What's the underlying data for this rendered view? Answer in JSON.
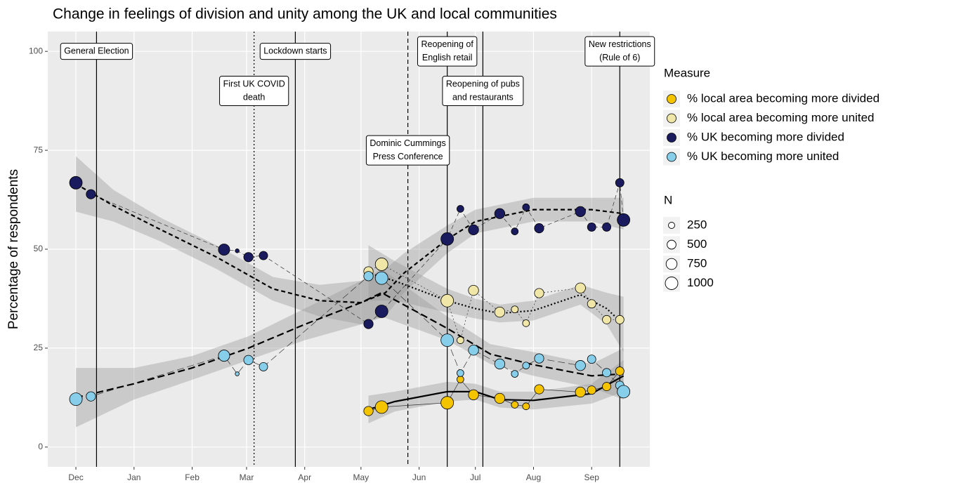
{
  "chart_data": {
    "type": "scatter",
    "title": "Change in feelings of division and unity among the UK and local communities",
    "ylabel": "Percentage of respondents",
    "xlim": [
      -15,
      306
    ],
    "ylim": [
      -5,
      105
    ],
    "xticks": [
      {
        "value": 0,
        "label": "Dec"
      },
      {
        "value": 31,
        "label": "Jan"
      },
      {
        "value": 62,
        "label": "Feb"
      },
      {
        "value": 91,
        "label": "Mar"
      },
      {
        "value": 122,
        "label": "Apr"
      },
      {
        "value": 152,
        "label": "May"
      },
      {
        "value": 183,
        "label": "Jun"
      },
      {
        "value": 213,
        "label": "Jul"
      },
      {
        "value": 244,
        "label": "Aug"
      },
      {
        "value": 275,
        "label": "Sep"
      }
    ],
    "yticks": [
      0,
      25,
      50,
      75,
      100
    ],
    "grid": true,
    "legend_title": "Measure",
    "size_legend": {
      "title": "N",
      "values": [
        250,
        500,
        750,
        1000
      ]
    },
    "annotations": [
      {
        "label": [
          "General Election"
        ],
        "x": 11,
        "label_y": 100,
        "linetype": "solid"
      },
      {
        "label": [
          "First UK COVID",
          "death"
        ],
        "x": 95,
        "label_y": 90,
        "linetype": "dotted"
      },
      {
        "label": [
          "Lockdown starts"
        ],
        "x": 117,
        "label_y": 100,
        "linetype": "solid"
      },
      {
        "label": [
          "Dominic Cummings",
          "Press Conference"
        ],
        "x": 177,
        "label_y": 75,
        "linetype": "dashed"
      },
      {
        "label": [
          "Reopening of",
          "English retail"
        ],
        "x": 198,
        "label_y": 100,
        "linetype": "solid"
      },
      {
        "label": [
          "Reopening of pubs",
          "and restaurants"
        ],
        "x": 217,
        "label_y": 90,
        "linetype": "solid"
      },
      {
        "label": [
          "New restrictions",
          "(Rule of 6)"
        ],
        "x": 290,
        "label_y": 100,
        "linetype": "solid"
      }
    ],
    "series": [
      {
        "name": "% local area becoming more divided",
        "color": "#f5c400",
        "linetype": "solid",
        "x": [
          156,
          163,
          198,
          205,
          212,
          226,
          234,
          240,
          247,
          269,
          275,
          283,
          290
        ],
        "values": [
          9.1,
          10.1,
          11.2,
          17.1,
          13.2,
          12.3,
          10.7,
          10.3,
          14.6,
          13.9,
          14.4,
          15.3,
          19.2
        ],
        "sizes": [
          550,
          1000,
          1000,
          300,
          650,
          650,
          300,
          300,
          550,
          650,
          450,
          450,
          450
        ],
        "trend": {
          "x": [
            156,
            170,
            198,
            213,
            226,
            244,
            275,
            292
          ],
          "values": [
            9.5,
            11.5,
            14,
            14,
            12,
            11.8,
            13.5,
            18
          ],
          "lower": [
            6,
            9,
            11.5,
            12,
            10,
            9.5,
            11,
            14
          ],
          "upper": [
            13,
            14,
            16.5,
            16,
            14,
            14,
            16,
            22
          ]
        }
      },
      {
        "name": "% local area becoming more united",
        "color": "#f0e6a8",
        "linetype": "dotted",
        "x": [
          156,
          163,
          198,
          205,
          212,
          226,
          234,
          240,
          247,
          269,
          275,
          283,
          290
        ],
        "values": [
          44.4,
          46.2,
          37,
          27,
          39.6,
          34.1,
          34.8,
          31.3,
          38.9,
          40.2,
          36.2,
          32.2,
          32.2
        ],
        "sizes": [
          550,
          1000,
          1000,
          300,
          650,
          650,
          300,
          300,
          550,
          650,
          450,
          450,
          450
        ],
        "trend": {
          "x": [
            156,
            170,
            198,
            213,
            226,
            244,
            269,
            283,
            292
          ],
          "values": [
            44,
            42,
            37,
            35,
            33.8,
            34.5,
            38.5,
            35,
            31
          ],
          "lower": [
            37,
            37,
            34,
            32.5,
            31.5,
            32,
            36,
            31,
            24
          ],
          "upper": [
            51,
            47,
            40,
            37.5,
            36,
            37,
            41,
            39,
            38
          ]
        }
      },
      {
        "name": "% UK becoming more divided",
        "color": "#1a1a5e",
        "linetype": "dashed",
        "x": [
          0,
          8,
          79,
          86,
          92,
          100,
          156,
          163,
          198,
          205,
          212,
          226,
          234,
          240,
          247,
          269,
          275,
          283,
          290,
          292
        ],
        "values": [
          66.8,
          63.9,
          49.9,
          49.6,
          48,
          48.4,
          31.1,
          34.3,
          52.6,
          60.2,
          54.9,
          59,
          54.5,
          60.6,
          55.3,
          59.5,
          55.6,
          55.6,
          66.8,
          57.4
        ],
        "sizes": [
          1000,
          550,
          800,
          100,
          550,
          450,
          550,
          1000,
          1000,
          300,
          650,
          650,
          300,
          300,
          550,
          650,
          450,
          450,
          450,
          1000
        ],
        "trend": {
          "x": [
            0,
            20,
            45,
            75,
            105,
            130,
            152,
            165,
            175,
            198,
            213,
            244,
            275,
            292
          ],
          "values": [
            66.5,
            61,
            55,
            48,
            40,
            37,
            36.5,
            39,
            44,
            52.5,
            57,
            60,
            60,
            59
          ],
          "lower": [
            59.5,
            57,
            52,
            45,
            37,
            33,
            31,
            33,
            39,
            49,
            54,
            57,
            57,
            55
          ],
          "upper": [
            73.5,
            65,
            58,
            51,
            43,
            41,
            42,
            45,
            49,
            56,
            60,
            63,
            63,
            63
          ]
        }
      },
      {
        "name": "% UK becoming more united",
        "color": "#87ceeb",
        "linetype": "longdash",
        "x": [
          0,
          8,
          79,
          86,
          92,
          100,
          156,
          163,
          198,
          205,
          212,
          226,
          234,
          240,
          247,
          269,
          275,
          283,
          290,
          292
        ],
        "values": [
          12.1,
          12.8,
          23.1,
          18.5,
          22,
          20.3,
          43.2,
          42.7,
          27,
          18.7,
          24.5,
          21,
          18.5,
          20.6,
          22.4,
          20.6,
          22.2,
          18.8,
          15.6,
          14
        ],
        "sizes": [
          1000,
          550,
          800,
          100,
          550,
          450,
          550,
          1000,
          1000,
          300,
          650,
          650,
          300,
          300,
          550,
          650,
          450,
          450,
          450,
          1000
        ],
        "trend": {
          "x": [
            0,
            31,
            62,
            92,
            122,
            152,
            163,
            198,
            221,
            244,
            275,
            292
          ],
          "values": [
            12.5,
            16,
            20,
            25,
            31,
            36.5,
            39,
            30,
            23.5,
            20.8,
            18,
            18.5
          ],
          "lower": [
            5,
            12,
            17,
            22,
            27,
            31,
            33,
            27,
            21,
            18,
            15,
            12
          ],
          "upper": [
            20,
            20,
            23,
            28,
            35,
            42,
            45,
            33,
            26,
            24,
            21,
            25
          ]
        }
      }
    ]
  }
}
